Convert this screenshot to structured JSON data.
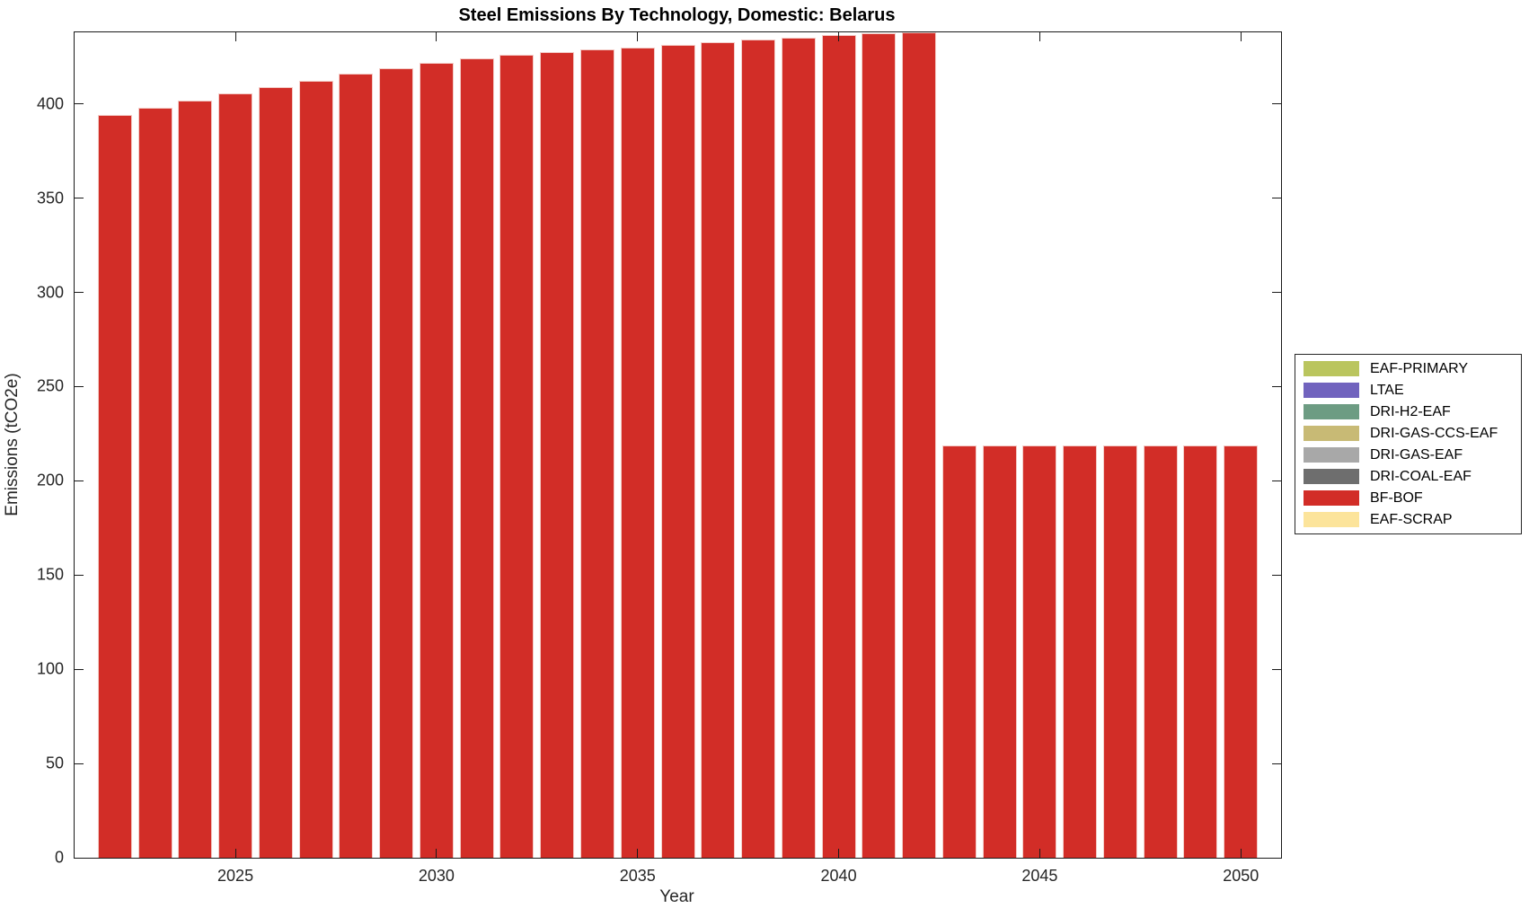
{
  "figure": {
    "title": "Steel Emissions By Technology, Domestic: Belarus",
    "xlabel": "Year",
    "ylabel": "Emissions (tCO2e)"
  },
  "chart_data": {
    "type": "bar",
    "title": "Steel Emissions By Technology, Domestic: Belarus",
    "xlabel": "Year",
    "ylabel": "Emissions (tCO2e)",
    "grid": false,
    "legend_position": "right-outside",
    "xlim": [
      2021,
      2051
    ],
    "ylim": [
      0,
      438
    ],
    "x_ticks": [
      2025,
      2030,
      2035,
      2040,
      2045,
      2050
    ],
    "y_ticks": [
      0,
      50,
      100,
      150,
      200,
      250,
      300,
      350,
      400
    ],
    "x": [
      2022,
      2023,
      2024,
      2025,
      2026,
      2027,
      2028,
      2029,
      2030,
      2031,
      2032,
      2033,
      2034,
      2035,
      2036,
      2037,
      2038,
      2039,
      2040,
      2041,
      2042,
      2043,
      2044,
      2045,
      2046,
      2047,
      2048,
      2049,
      2050
    ],
    "series": [
      {
        "name": "BF-BOF",
        "color": "#d22d27",
        "values": [
          394,
          398,
          402,
          405.5,
          409,
          412.5,
          416,
          419,
          422,
          424,
          426,
          427.5,
          429,
          430,
          431.5,
          433,
          434,
          435.2,
          436.5,
          437.5,
          438,
          219,
          219,
          219,
          219,
          219,
          219,
          219,
          219
        ]
      }
    ],
    "bar_width_fraction": 0.85,
    "bar_edge_color": "#f3ccc7",
    "legend": [
      {
        "label": "EAF-PRIMARY",
        "color": "#bac55e"
      },
      {
        "label": "LTAE",
        "color": "#7163be"
      },
      {
        "label": "DRI-H2-EAF",
        "color": "#6d9c83"
      },
      {
        "label": "DRI-GAS-CCS-EAF",
        "color": "#c8ba75"
      },
      {
        "label": "DRI-GAS-EAF",
        "color": "#a8a8a8"
      },
      {
        "label": "DRI-COAL-EAF",
        "color": "#6e6e6e"
      },
      {
        "label": "BF-BOF",
        "color": "#d22d27"
      },
      {
        "label": "EAF-SCRAP",
        "color": "#fce49b"
      }
    ]
  }
}
